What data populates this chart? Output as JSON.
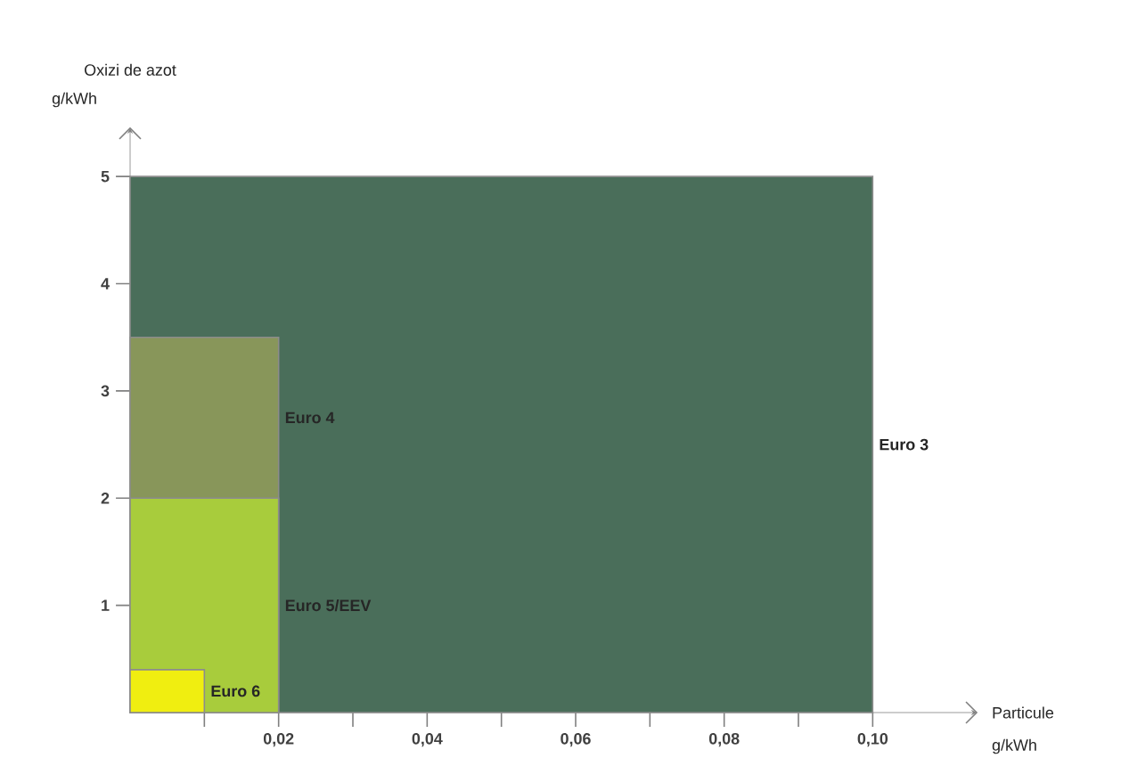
{
  "chart_data": {
    "type": "area",
    "ylabel": "Oxizi de azot",
    "xlabel": "Particule",
    "annotations": [
      "g/kWh",
      "g/kWh"
    ],
    "xlim": [
      0,
      0.114
    ],
    "ylim": [
      0,
      5.45
    ],
    "xticks": [
      {
        "value": 0.01,
        "label": null
      },
      {
        "value": 0.02,
        "label": "0,02"
      },
      {
        "value": 0.03,
        "label": null
      },
      {
        "value": 0.04,
        "label": "0,04"
      },
      {
        "value": 0.05,
        "label": null
      },
      {
        "value": 0.06,
        "label": "0,06"
      },
      {
        "value": 0.07,
        "label": null
      },
      {
        "value": 0.08,
        "label": "0,08"
      },
      {
        "value": 0.09,
        "label": null
      },
      {
        "value": 0.1,
        "label": "0,10"
      }
    ],
    "yticks": [
      1,
      2,
      3,
      4,
      5
    ],
    "series": [
      {
        "name": "Euro 3",
        "color": "#4a6e5a",
        "x": [
          0,
          0.1
        ],
        "values": [
          5,
          5
        ]
      },
      {
        "name": "Euro 4",
        "color": "#88965a",
        "x": [
          0,
          0.02
        ],
        "values": [
          3.5,
          3.5
        ]
      },
      {
        "name": "Euro 5/EEV",
        "color": "#a8cc3c",
        "x": [
          0,
          0.02
        ],
        "values": [
          2,
          2
        ]
      },
      {
        "name": "Euro 6",
        "color": "#f0ee10",
        "x": [
          0,
          0.01
        ],
        "values": [
          0.4,
          0.4
        ]
      }
    ]
  }
}
